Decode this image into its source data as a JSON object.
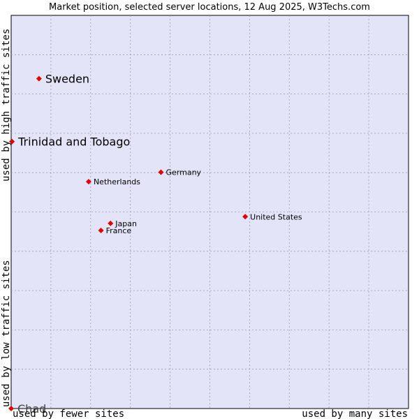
{
  "chart_data": {
    "type": "scatter",
    "title": "Market position, selected server locations, 12 Aug 2025, W3Techs.com",
    "xlabel_left": "used by fewer sites",
    "xlabel_right": "used by many sites",
    "ylabel_bottom": "used by low traffic sites",
    "ylabel_top": "used by high traffic sites",
    "xlim": [
      0,
      100
    ],
    "ylim": [
      0,
      100
    ],
    "grid": true,
    "points": [
      {
        "label": "Sweden",
        "x": 7.0,
        "y": 83.9,
        "size": "large"
      },
      {
        "label": "Trinidad and Tobago",
        "x": 0.2,
        "y": 67.9,
        "size": "large"
      },
      {
        "label": "Germany",
        "x": 37.7,
        "y": 60.1,
        "size": "small"
      },
      {
        "label": "Netherlands",
        "x": 19.5,
        "y": 57.7,
        "size": "small"
      },
      {
        "label": "United States",
        "x": 58.9,
        "y": 48.8,
        "size": "small"
      },
      {
        "label": "Japan",
        "x": 25.0,
        "y": 47.1,
        "size": "small"
      },
      {
        "label": "France",
        "x": 22.6,
        "y": 45.3,
        "size": "small"
      },
      {
        "label": "Chad",
        "x": 0.0,
        "y": 0.0,
        "size": "large",
        "faded": true
      }
    ]
  },
  "colors": {
    "plot_bg": "#e4e4f8",
    "marker": "#e00000",
    "grid": "#9a9aa8"
  }
}
